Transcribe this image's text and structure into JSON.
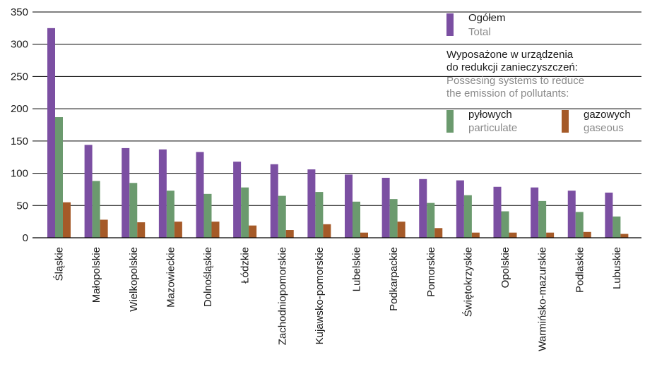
{
  "chart_data": {
    "type": "bar",
    "categories": [
      "Śląskie",
      "Małopolskie",
      "Wielkopolskie",
      "Mazowieckie",
      "Dolnośląskie",
      "Łódzkie",
      "Zachodniopomorskie",
      "Kujawsko-pomorskie",
      "Lubelskie",
      "Podkarpackie",
      "Pomorskie",
      "Świętokrzyskie",
      "Opolskie",
      "Warmińsko-mazurskie",
      "Podlaskie",
      "Lubuskie"
    ],
    "series": [
      {
        "key": "total",
        "name": "Ogółem",
        "name_en": "Total",
        "color": "#7b4fa2",
        "values": [
          325,
          144,
          139,
          137,
          133,
          118,
          114,
          106,
          98,
          93,
          91,
          89,
          79,
          78,
          73,
          70
        ]
      },
      {
        "key": "particulate",
        "name": "pyłowych",
        "name_en": "particulate",
        "color": "#6b9a6e",
        "values": [
          187,
          88,
          85,
          73,
          68,
          78,
          65,
          71,
          56,
          60,
          54,
          66,
          41,
          57,
          40,
          33
        ]
      },
      {
        "key": "gaseous",
        "name": "gazowych",
        "name_en": "gaseous",
        "color": "#a55a28",
        "values": [
          55,
          28,
          24,
          25,
          25,
          19,
          12,
          21,
          8,
          25,
          15,
          8,
          8,
          8,
          9,
          6
        ]
      }
    ],
    "ylim": [
      0,
      350
    ],
    "yticks": [
      0,
      50,
      100,
      150,
      200,
      250,
      300,
      350
    ],
    "grid": true,
    "legend_position": "top-right",
    "legend_group_heading": "Wyposażone w urządzenia do redukcji zanieczyszczeń:",
    "legend_group_heading_en": "Possesing systems to reduce the emission of pollutants:"
  }
}
